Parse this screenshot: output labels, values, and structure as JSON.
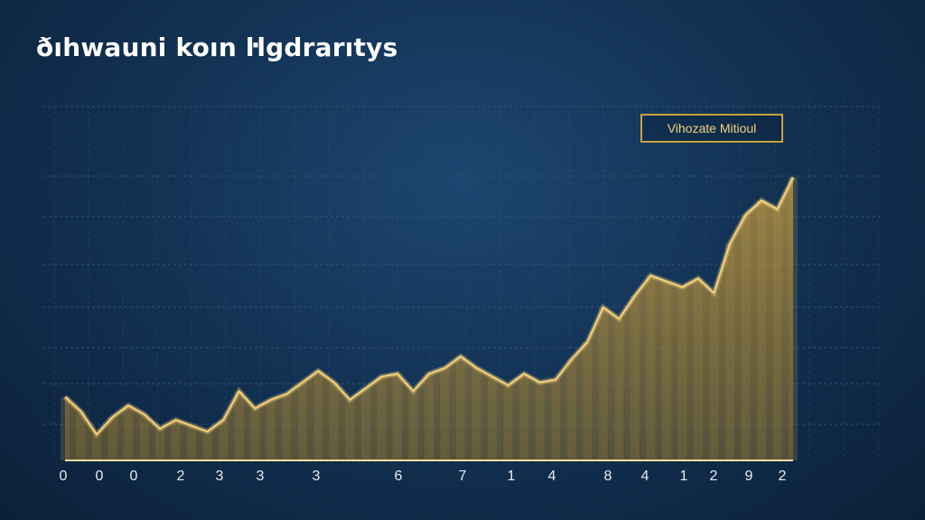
{
  "title": "ðıhwauni koın ŀlgdrarıtys",
  "legend_label": "Vihozate Mitioul",
  "colors": {
    "background": "#133355",
    "line": "#f3cf7a",
    "area": "#c29a3e",
    "baseline": "#f2dca0",
    "grid": "#3a5877"
  },
  "chart_data": {
    "type": "area",
    "title": "ðıhwauni koın ŀlgdrarıtys",
    "xlabel": "",
    "ylabel": "",
    "grid": true,
    "legend_position": "top-right",
    "x_tick_labels": [
      "0",
      "0",
      "0",
      "2",
      "3",
      "3",
      "3",
      "6",
      "7",
      "1",
      "4",
      "8",
      "4",
      "1",
      "2",
      "9",
      "2"
    ],
    "ylim": [
      0,
      100
    ],
    "series": [
      {
        "name": "Vihozate Mitioul",
        "values": [
          22,
          17,
          9,
          15,
          19,
          16,
          11,
          14,
          12,
          10,
          14,
          24,
          18,
          21,
          23,
          27,
          31,
          27,
          21,
          25,
          29,
          30,
          24,
          30,
          32,
          36,
          32,
          29,
          26,
          30,
          27,
          28,
          35,
          41,
          53,
          49,
          57,
          64,
          62,
          60,
          63,
          58,
          75,
          85,
          90,
          87,
          98
        ]
      }
    ]
  }
}
